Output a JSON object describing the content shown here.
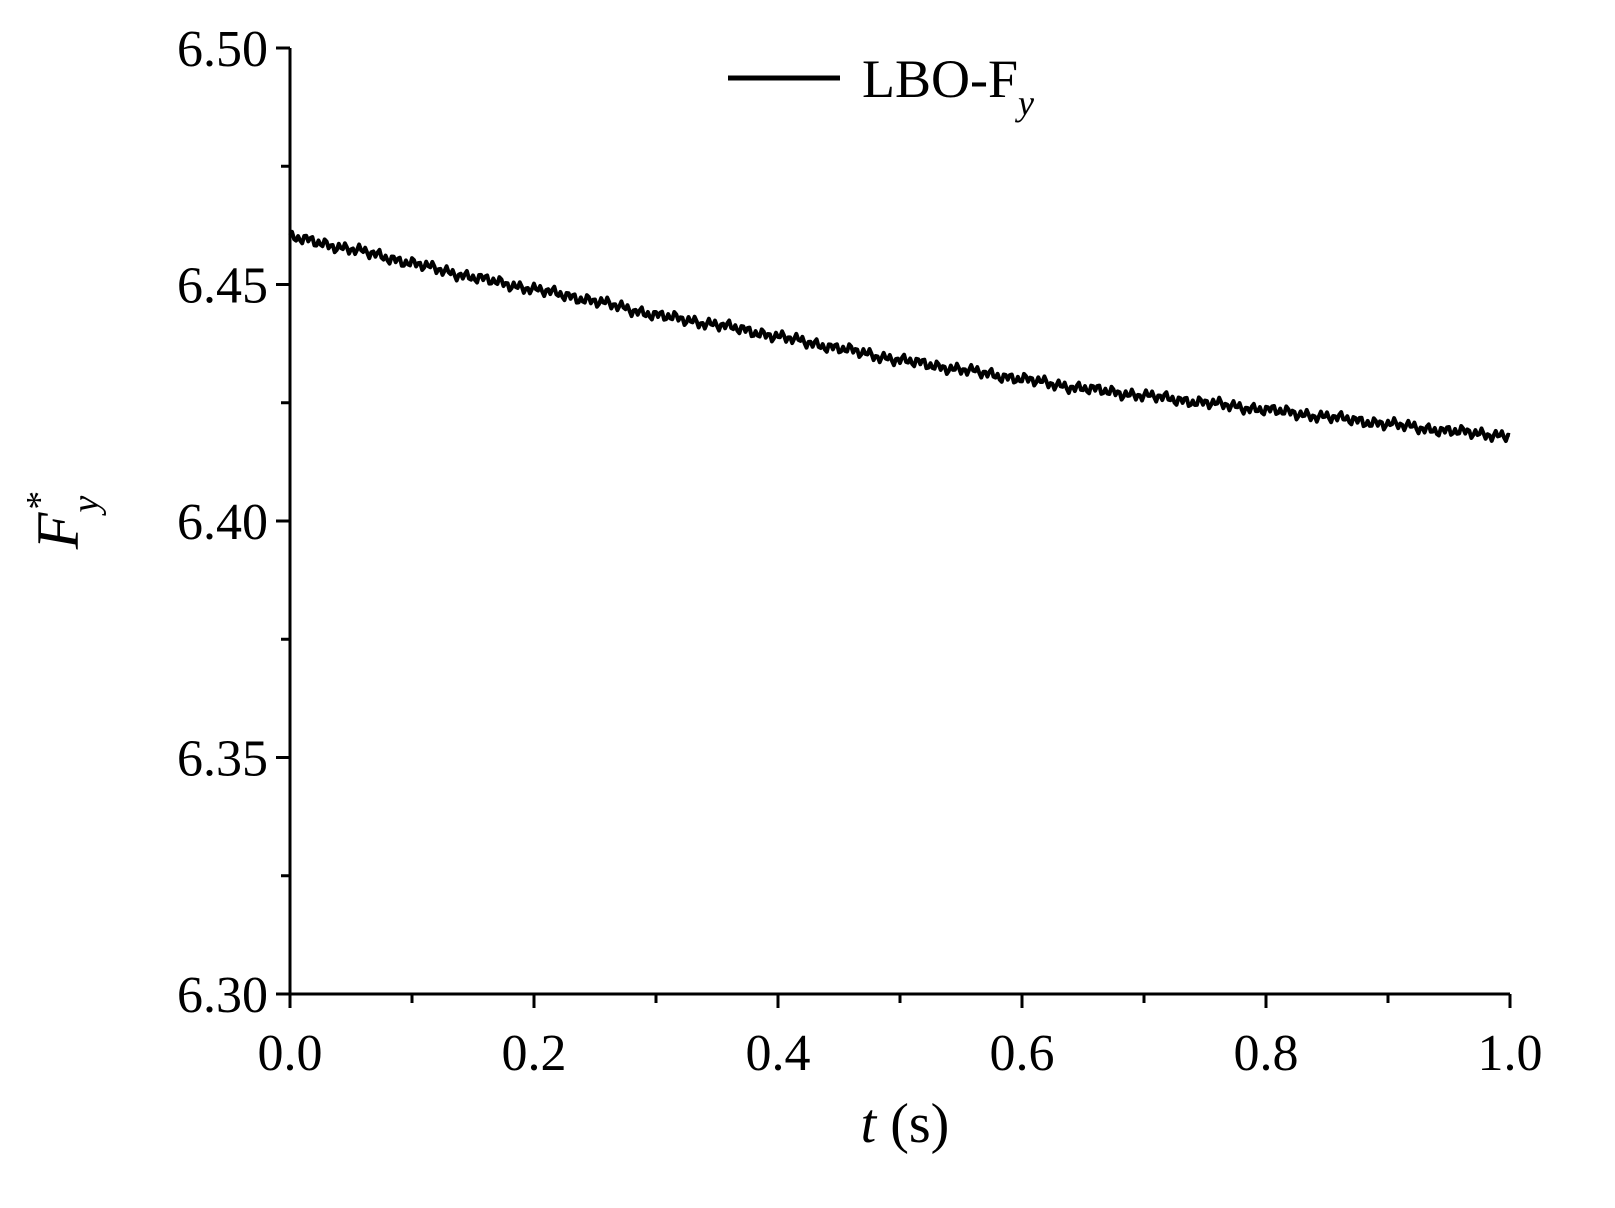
{
  "chart_data": {
    "type": "line",
    "title": "",
    "xlabel": {
      "italic": "t",
      "rest": " (s)"
    },
    "ylabel": {
      "base": "F",
      "sub": "y",
      "sup": "*"
    },
    "xlim": [
      0.0,
      1.0
    ],
    "ylim": [
      6.3,
      6.5
    ],
    "x_ticks": [
      "0.0",
      "0.2",
      "0.4",
      "0.6",
      "0.8",
      "1.0"
    ],
    "y_ticks": [
      "6.30",
      "6.35",
      "6.40",
      "6.45",
      "6.50"
    ],
    "x_minor_step": 0.1,
    "y_minor_step": 0.025,
    "grid": false,
    "legend_position": "top-center",
    "line_color": "#000000",
    "series": [
      {
        "name": "LBO-F_y",
        "legend_base": "LBO-F",
        "legend_sub": "y",
        "x": [
          0.0,
          0.05,
          0.1,
          0.15,
          0.2,
          0.25,
          0.3,
          0.35,
          0.4,
          0.45,
          0.5,
          0.55,
          0.6,
          0.65,
          0.7,
          0.75,
          0.8,
          0.85,
          0.9,
          0.95,
          1.0
        ],
        "y": [
          6.46,
          6.4575,
          6.4545,
          6.4515,
          6.449,
          6.4465,
          6.4435,
          6.4415,
          6.439,
          6.4365,
          6.434,
          6.432,
          6.43,
          6.428,
          6.4265,
          6.425,
          6.4235,
          6.422,
          6.4205,
          6.419,
          6.418
        ],
        "noise_amplitude": 0.0015
      }
    ]
  }
}
